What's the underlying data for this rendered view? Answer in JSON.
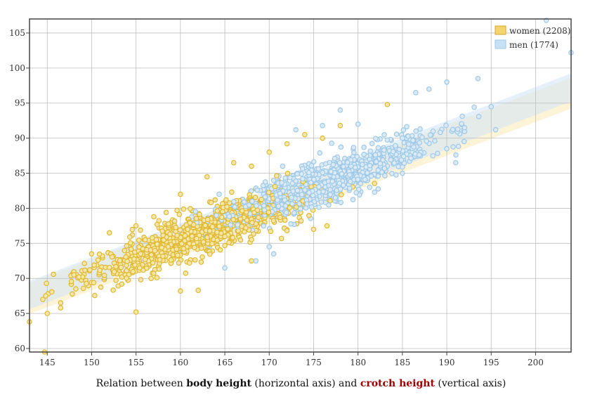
{
  "caption": {
    "prefix": "Relation between ",
    "term1": "body height",
    "middle1": " (horizontal axis) and ",
    "term2": "crotch height",
    "suffix": " (vertical axis)"
  },
  "colors": {
    "women_fill": "#f5e7a8",
    "women_stroke": "#e0b832",
    "men_fill": "#dbeaf4",
    "men_stroke": "#9ec9e8",
    "women_band": "#fbe9b6",
    "men_band": "#cfe4f5",
    "term2": "#a00000"
  },
  "chart_data": {
    "type": "scatter",
    "title": "",
    "xlabel": "body height",
    "ylabel": "crotch height",
    "xlim": [
      143,
      204
    ],
    "ylim": [
      59.5,
      107
    ],
    "x_ticks": [
      145,
      150,
      155,
      160,
      165,
      170,
      175,
      180,
      185,
      190,
      195,
      200
    ],
    "y_ticks": [
      60,
      65,
      70,
      75,
      80,
      85,
      90,
      95,
      100,
      105
    ],
    "grid": true,
    "legend_position": "top-right",
    "series": [
      {
        "name": "women (2208)",
        "count": 2208,
        "color": "#e0b832",
        "x_range": [
          143,
          184
        ],
        "trend": {
          "intercept": -1.5,
          "slope": 0.48
        },
        "band_half_width": 2.2,
        "points": [
          [
            143,
            63.8
          ],
          [
            144.7,
            59.5
          ],
          [
            144.5,
            67
          ],
          [
            145,
            65
          ],
          [
            146.5,
            65.8
          ],
          [
            148,
            70.5
          ],
          [
            150,
            73.5
          ],
          [
            152,
            76.5
          ],
          [
            155,
            77.5
          ],
          [
            157,
            78.8
          ],
          [
            160,
            82
          ],
          [
            163,
            84.5
          ],
          [
            166,
            86.5
          ],
          [
            168,
            86
          ],
          [
            170,
            88
          ],
          [
            172,
            89.2
          ],
          [
            174,
            90.5
          ],
          [
            176,
            90
          ],
          [
            178,
            91.8
          ],
          [
            183.3,
            94.8
          ],
          [
            155,
            65.2
          ],
          [
            160,
            68.2
          ],
          [
            162,
            68.3
          ],
          [
            168,
            72.5
          ],
          [
            172,
            76.8
          ],
          [
            175,
            77
          ],
          [
            176.5,
            77.5
          ]
        ]
      },
      {
        "name": "men (1774)",
        "count": 1774,
        "color": "#9ec9e8",
        "x_range": [
          152,
          204
        ],
        "trend": {
          "intercept": -1.9,
          "slope": 0.486
        },
        "band_half_width": 2.0,
        "points": [
          [
            201.2,
            106.8
          ],
          [
            204,
            102.2
          ],
          [
            193.5,
            98.5
          ],
          [
            190,
            98
          ],
          [
            188,
            97
          ],
          [
            186.5,
            96.5
          ],
          [
            195,
            94.5
          ],
          [
            192,
            91.5
          ],
          [
            195.5,
            91.2
          ],
          [
            191,
            86.5
          ],
          [
            185,
            90
          ],
          [
            180,
            92
          ],
          [
            178,
            94
          ],
          [
            176,
            91.8
          ],
          [
            173,
            91.2
          ],
          [
            170.5,
            73.5
          ],
          [
            168.5,
            72.5
          ],
          [
            165,
            71.5
          ],
          [
            170,
            74.5
          ]
        ]
      }
    ]
  }
}
